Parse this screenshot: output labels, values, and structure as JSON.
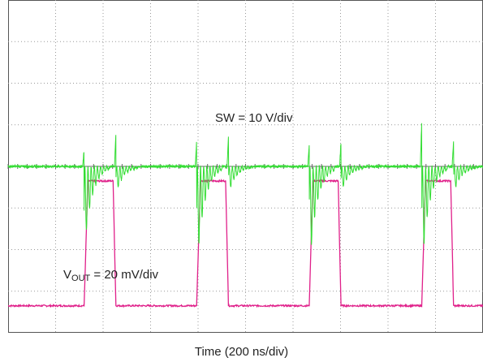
{
  "chart_data": {
    "type": "line",
    "title": "",
    "xlabel": "Time (200 ns/div)",
    "ylabel": "",
    "grid": true,
    "divisions": {
      "x": 10,
      "y": 8
    },
    "x_unit": "div",
    "xlim": [
      0,
      10
    ],
    "series": [
      {
        "name": "SW",
        "scale_label": "SW = 10 V/div",
        "color": "#e0208a",
        "unit": "div",
        "baseline": -3.35,
        "high": -0.35,
        "pulses": [
          {
            "rise": 1.6,
            "fall": 2.27
          },
          {
            "rise": 3.97,
            "fall": 4.64
          },
          {
            "rise": 6.34,
            "fall": 7.01
          },
          {
            "rise": 8.71,
            "fall": 9.38
          }
        ]
      },
      {
        "name": "VOUT",
        "scale_label_prefix": "V",
        "scale_label_sub": "OUT",
        "scale_label_suffix": " = 20 mV/div",
        "color": "#33dd33",
        "unit": "div",
        "baseline": 0.0,
        "ring_events": [
          {
            "x": 1.6,
            "depth": -1.9,
            "peak": 0.4
          },
          {
            "x": 2.27,
            "depth": -0.6,
            "peak": 0.8
          },
          {
            "x": 3.97,
            "depth": -2.3,
            "peak": 0.6
          },
          {
            "x": 4.64,
            "depth": -0.6,
            "peak": 0.7
          },
          {
            "x": 6.34,
            "depth": -2.3,
            "peak": 0.5
          },
          {
            "x": 7.01,
            "depth": -0.6,
            "peak": 0.6
          },
          {
            "x": 8.71,
            "depth": -2.3,
            "peak": 1.1
          },
          {
            "x": 9.38,
            "depth": -0.6,
            "peak": 0.6
          }
        ]
      }
    ]
  },
  "labels": {
    "sw": "SW = 10 V/div",
    "vout_main": "V",
    "vout_sub": "OUT",
    "vout_rest": " = 20 mV/div",
    "xlabel": "Time (200 ns/div)"
  }
}
